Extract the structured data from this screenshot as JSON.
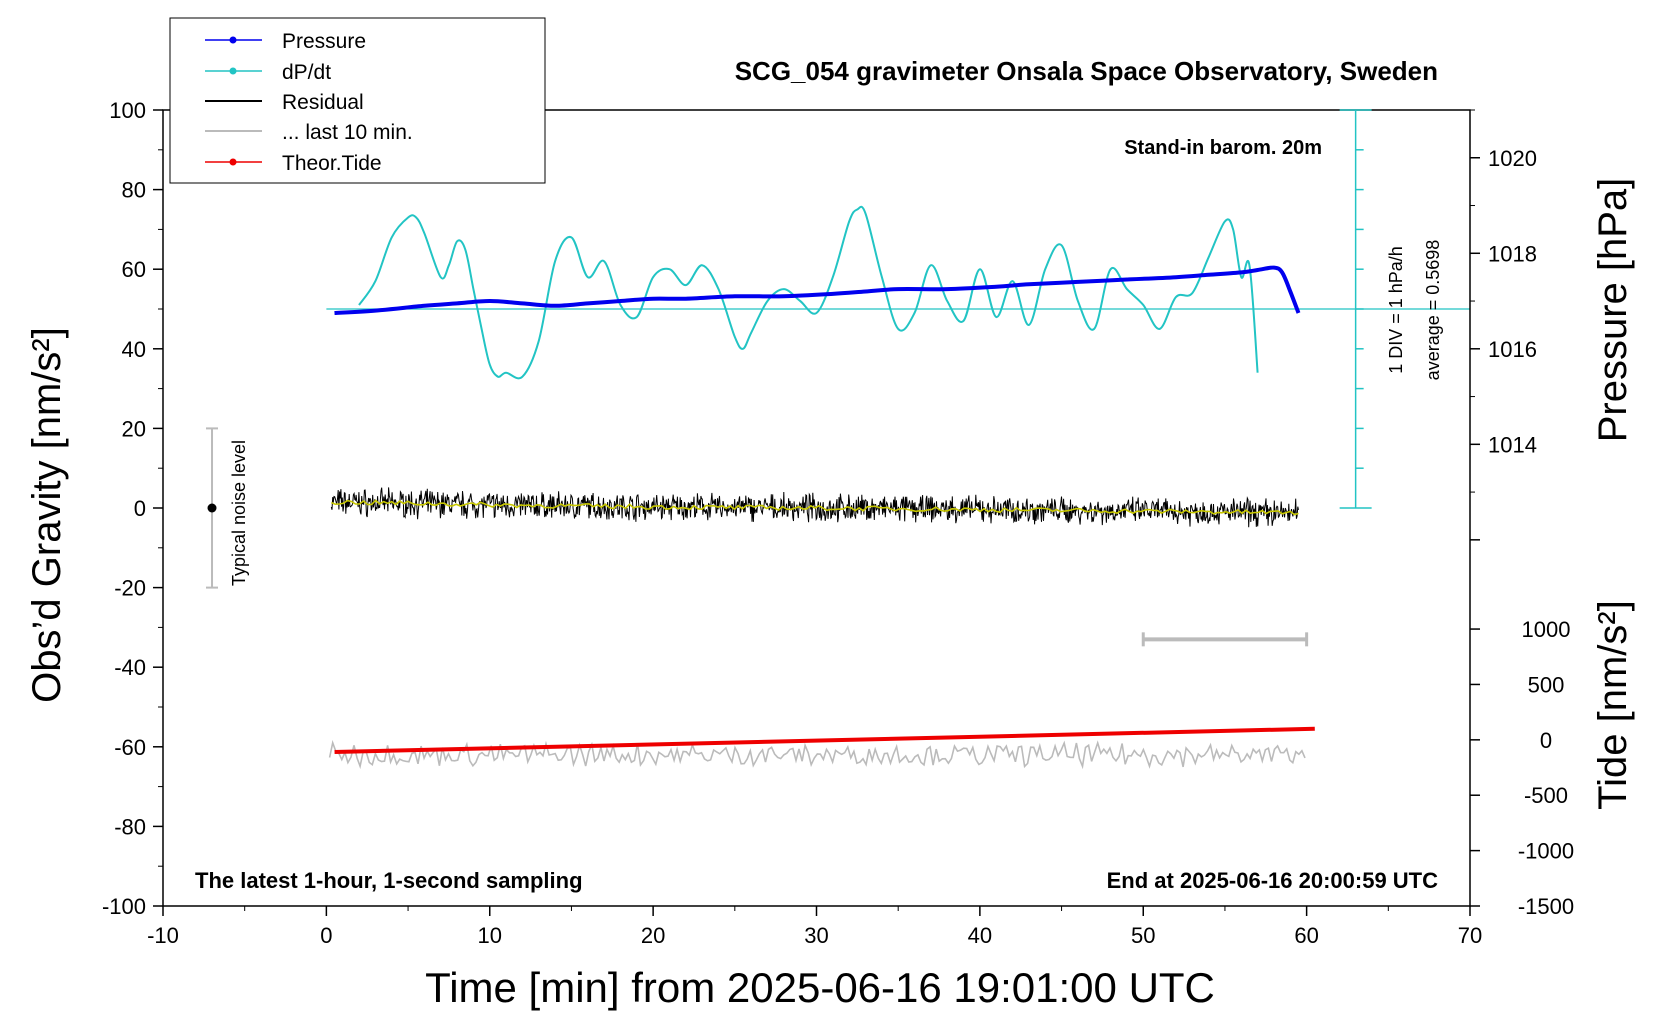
{
  "chart_data": {
    "type": "line",
    "title": "SCG_054 gravimeter Onsala Space Observatory, Sweden",
    "xlabel": "Time [min] from 2025-06-16 19:01:00 UTC",
    "ylabel_left": "Obs’d Gravity [nm/s²]",
    "ylabel_right_top": "Pressure [hPa]",
    "ylabel_right_bottom": "Tide [nm/s²]",
    "xlim": [
      -10,
      70
    ],
    "ylim_left": [
      -100,
      100
    ],
    "pressure_ylim": [
      1011,
      1021
    ],
    "tide_ylim": [
      -1500,
      1500
    ],
    "x_ticks": [
      "-10",
      "0",
      "10",
      "20",
      "30",
      "40",
      "50",
      "60",
      "70"
    ],
    "y_ticks_left": [
      "100",
      "80",
      "60",
      "40",
      "20",
      "0",
      "-20",
      "-40",
      "-60",
      "-80",
      "-100"
    ],
    "y_ticks_pressure": [
      "1020",
      "1018",
      "1016",
      "1014"
    ],
    "y_ticks_tide": [
      "1000",
      "500",
      "0",
      "-500",
      "-1000",
      "-1500"
    ],
    "legend": [
      "Pressure",
      "dP/dt",
      "Residual",
      "... last 10 min.",
      "Theor.Tide"
    ],
    "annotations": {
      "barometer": "Stand-in barom. 20m",
      "div": "1 DIV = 1 hPa/h",
      "average": "average = 0.5698",
      "noise": "Typical noise level",
      "sampling": "The latest 1-hour, 1-second sampling",
      "end": "End at 2025-06-16 20:00:59 UTC"
    },
    "colors": {
      "pressure": "#0000ee",
      "dpdt": "#22c4c4",
      "residual": "#000000",
      "residual_smooth": "#c8c800",
      "last10": "#bbbbbb",
      "tide": "#ee0000"
    },
    "series": [
      {
        "name": "Pressure",
        "unit": "hPa",
        "x": [
          0.5,
          3,
          6,
          8,
          10,
          12,
          14,
          16,
          18,
          20,
          22,
          25,
          28,
          31,
          33,
          35,
          38,
          41,
          43,
          46,
          49,
          52,
          54,
          56,
          57,
          58,
          58.5,
          59,
          59.5
        ],
        "y": [
          1016.75,
          1016.8,
          1016.9,
          1016.95,
          1017.0,
          1016.95,
          1016.9,
          1016.95,
          1017.0,
          1017.05,
          1017.05,
          1017.1,
          1017.1,
          1017.15,
          1017.2,
          1017.25,
          1017.25,
          1017.3,
          1017.35,
          1017.4,
          1017.45,
          1017.5,
          1017.55,
          1017.6,
          1017.65,
          1017.7,
          1017.6,
          1017.2,
          1016.75
        ]
      },
      {
        "name": "dP/dt",
        "unit": "nm/s² plot units",
        "x": [
          2,
          3,
          4,
          5,
          5.5,
          6,
          7,
          7.5,
          8,
          8.5,
          9,
          9.5,
          10,
          10.5,
          11,
          12,
          13,
          14,
          15,
          16,
          17,
          18,
          19,
          20,
          21,
          22,
          23,
          24,
          25,
          25.5,
          26,
          27,
          28,
          29,
          30,
          31,
          32,
          32.5,
          33,
          34,
          35,
          36,
          37,
          38,
          39,
          40,
          41,
          42,
          43,
          44,
          45,
          46,
          47,
          48,
          49,
          50,
          51,
          52,
          53,
          54,
          55,
          55.5,
          56,
          56.5,
          57
        ],
        "y": [
          51,
          57,
          68,
          73,
          73,
          69,
          58,
          61,
          67,
          65,
          55,
          45,
          36,
          33,
          34,
          33,
          42,
          62,
          68,
          58,
          62,
          51,
          48,
          58,
          60,
          56,
          61,
          55,
          43,
          40,
          44,
          52,
          55,
          52,
          49,
          58,
          72,
          75,
          74,
          58,
          45,
          49,
          61,
          52,
          47,
          60,
          48,
          57,
          46,
          60,
          66,
          52,
          45,
          60,
          55,
          51,
          45,
          53,
          54,
          63,
          72,
          70,
          58,
          61,
          34
        ]
      },
      {
        "name": "Residual",
        "unit": "nm/s²",
        "x": [
          0.3,
          5,
          10,
          15,
          20,
          25,
          30,
          35,
          40,
          45,
          50,
          55,
          59.5
        ],
        "y": [
          1.5,
          1.2,
          0.8,
          0.5,
          0.3,
          0.1,
          0.0,
          -0.2,
          -0.4,
          -0.6,
          -0.8,
          -1.0,
          -1.2
        ]
      },
      {
        "name": "... last 10 min.",
        "unit": "nm/s²",
        "x": [
          0.2,
          59.9
        ],
        "y": [
          -62,
          -62
        ]
      },
      {
        "name": "Theor.Tide",
        "unit": "nm/s²",
        "x": [
          0.5,
          60.5
        ],
        "y": [
          -110,
          100
        ]
      }
    ],
    "scale_bar": {
      "x": [
        50,
        60
      ],
      "y_left": -33
    },
    "noise_bar": {
      "x": -7,
      "y": [
        -20,
        20
      ],
      "center": 0
    },
    "reference_line": {
      "y": 50
    }
  }
}
